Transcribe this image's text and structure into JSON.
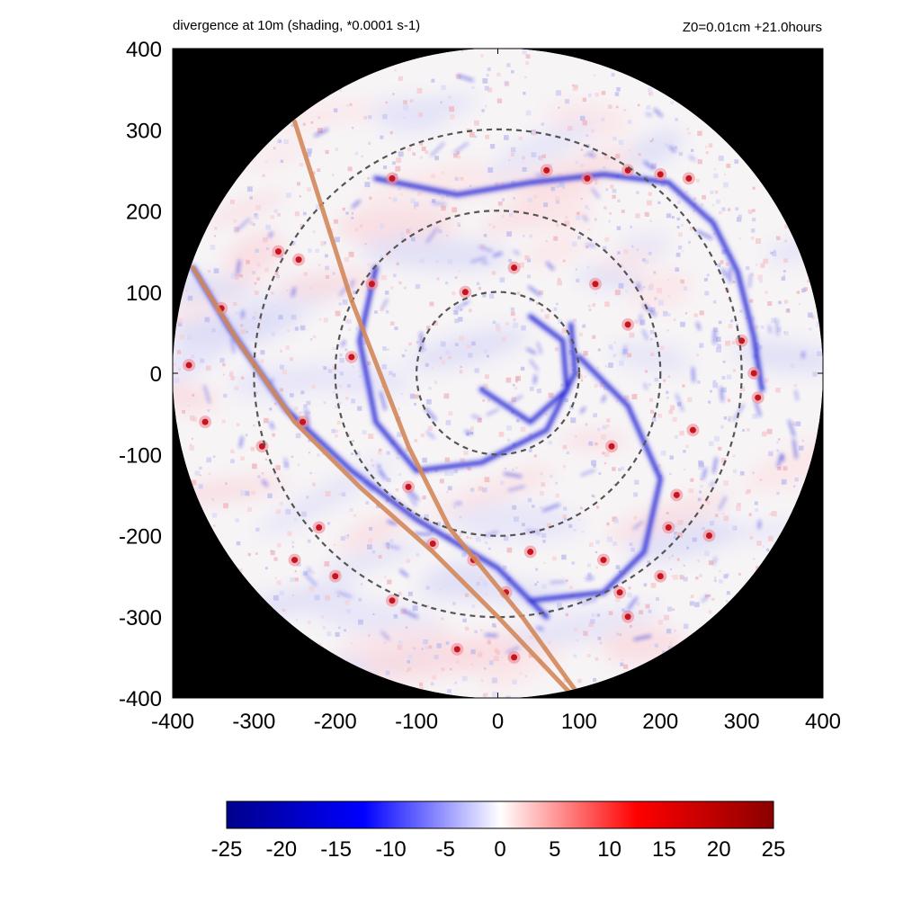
{
  "header": {
    "title": "divergence at 10m (shading, *0.0001 s-1)",
    "run_info": "Z0=0.01cm  +21.0hours"
  },
  "chart_data": {
    "type": "heatmap",
    "title": "divergence at 10m (shading, *0.0001 s-1)",
    "subtitle": "Z0=0.01cm  +21.0hours",
    "xlabel": "",
    "ylabel": "",
    "xlim": [
      -400,
      400
    ],
    "ylim": [
      -400,
      400
    ],
    "x_ticks": [
      -400,
      -300,
      -200,
      -100,
      0,
      100,
      200,
      300,
      400
    ],
    "y_ticks": [
      -400,
      -300,
      -200,
      -100,
      0,
      100,
      200,
      300,
      400
    ],
    "domain_radius": 400,
    "range_rings": [
      100,
      200,
      300
    ],
    "colorbar": {
      "min": -25,
      "max": 25,
      "ticks": [
        -25,
        -20,
        -15,
        -10,
        -5,
        0,
        5,
        10,
        15,
        20,
        25
      ],
      "colors": [
        "#00008b",
        "#0000ff",
        "#ffffff",
        "#ff0000",
        "#8b0000"
      ]
    },
    "tracks": [
      {
        "color": "#d2875a",
        "points": [
          [
            -250,
            310
          ],
          [
            -180,
            90
          ],
          [
            -110,
            -90
          ],
          [
            -60,
            -190
          ],
          [
            30,
            -300
          ],
          [
            95,
            -390
          ]
        ]
      },
      {
        "color": "#d2875a",
        "points": [
          [
            -375,
            130
          ],
          [
            -320,
            40
          ],
          [
            -250,
            -60
          ],
          [
            -170,
            -140
          ],
          [
            -80,
            -220
          ],
          [
            0,
            -300
          ],
          [
            90,
            -395
          ]
        ]
      }
    ],
    "features": {
      "negative_bands": [
        {
          "name": "outer-rainband",
          "points": [
            [
              -150,
              240
            ],
            [
              -50,
              220
            ],
            [
              40,
              235
            ],
            [
              130,
              245
            ],
            [
              210,
              235
            ],
            [
              265,
              185
            ],
            [
              295,
              125
            ],
            [
              315,
              45
            ],
            [
              325,
              -20
            ]
          ]
        },
        {
          "name": "inner-rainband",
          "points": [
            [
              -150,
              130
            ],
            [
              -170,
              40
            ],
            [
              -150,
              -60
            ],
            [
              -100,
              -120
            ],
            [
              -20,
              -110
            ],
            [
              60,
              -70
            ],
            [
              95,
              0
            ],
            [
              90,
              60
            ]
          ]
        },
        {
          "name": "southern-band",
          "points": [
            [
              100,
              20
            ],
            [
              160,
              -40
            ],
            [
              200,
              -130
            ],
            [
              180,
              -220
            ],
            [
              130,
              -270
            ],
            [
              40,
              -280
            ]
          ]
        },
        {
          "name": "western-band",
          "points": [
            [
              -375,
              130
            ],
            [
              -330,
              55
            ],
            [
              -260,
              -45
            ],
            [
              -180,
              -120
            ],
            [
              -100,
              -180
            ],
            [
              0,
              -240
            ],
            [
              60,
              -300
            ]
          ]
        },
        {
          "name": "inner-spiral",
          "points": [
            [
              -20,
              -20
            ],
            [
              40,
              -60
            ],
            [
              85,
              -20
            ],
            [
              80,
              40
            ],
            [
              40,
              70
            ]
          ]
        }
      ],
      "positive_spots": [
        [
          60,
          250
        ],
        [
          110,
          240
        ],
        [
          160,
          250
        ],
        [
          200,
          245
        ],
        [
          235,
          240
        ],
        [
          300,
          40
        ],
        [
          315,
          0
        ],
        [
          320,
          -30
        ],
        [
          -130,
          240
        ],
        [
          -155,
          110
        ],
        [
          -180,
          20
        ],
        [
          -245,
          140
        ],
        [
          -270,
          150
        ],
        [
          -340,
          80
        ],
        [
          -380,
          10
        ],
        [
          -360,
          -60
        ],
        [
          -290,
          -90
        ],
        [
          -240,
          -60
        ],
        [
          -110,
          -140
        ],
        [
          -80,
          -210
        ],
        [
          -30,
          -230
        ],
        [
          10,
          -270
        ],
        [
          40,
          -220
        ],
        [
          130,
          -230
        ],
        [
          150,
          -270
        ],
        [
          160,
          -300
        ],
        [
          200,
          -250
        ],
        [
          210,
          -190
        ],
        [
          220,
          -150
        ],
        [
          240,
          -70
        ],
        [
          -220,
          -190
        ],
        [
          -250,
          -230
        ],
        [
          -300,
          -320
        ],
        [
          -130,
          -280
        ],
        [
          -50,
          -340
        ],
        [
          20,
          -350
        ],
        [
          260,
          -200
        ],
        [
          120,
          110
        ],
        [
          160,
          60
        ],
        [
          -40,
          100
        ],
        [
          20,
          130
        ],
        [
          140,
          -90
        ],
        [
          -200,
          -250
        ],
        [
          -330,
          -260
        ]
      ]
    }
  }
}
